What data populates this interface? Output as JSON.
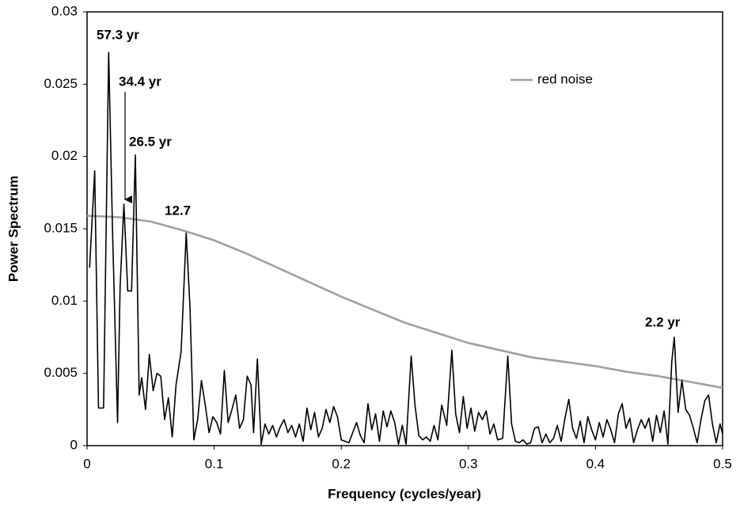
{
  "chart_data": {
    "type": "line",
    "xlabel": "Frequency (cycles/year)",
    "ylabel": "Power Spectrum",
    "xlim": [
      0,
      0.5
    ],
    "xticks": [
      0,
      0.1,
      0.2,
      0.3,
      0.4,
      0.5
    ],
    "ylim": [
      0,
      0.03
    ],
    "yticks": [
      0,
      0.005,
      0.01,
      0.015,
      0.02,
      0.025,
      0.03
    ],
    "grid": false,
    "legend": "top-right",
    "annotations": [
      "57.3 yr",
      "34.4 yr",
      "26.5 yr",
      "12.7",
      "2.2 yr"
    ],
    "series": [
      {
        "color": "#000000",
        "x": [
          0.002,
          0.006,
          0.009,
          0.013,
          0.017,
          0.02,
          0.024,
          0.026,
          0.029,
          0.032,
          0.035,
          0.038,
          0.041,
          0.043,
          0.046,
          0.049,
          0.052,
          0.055,
          0.058,
          0.061,
          0.064,
          0.067,
          0.07,
          0.074,
          0.078,
          0.081,
          0.084,
          0.087,
          0.09,
          0.093,
          0.096,
          0.099,
          0.102,
          0.105,
          0.108,
          0.111,
          0.114,
          0.117,
          0.12,
          0.123,
          0.126,
          0.129,
          0.131,
          0.134,
          0.137,
          0.14,
          0.143,
          0.146,
          0.149,
          0.152,
          0.155,
          0.158,
          0.161,
          0.164,
          0.167,
          0.17,
          0.173,
          0.176,
          0.179,
          0.182,
          0.185,
          0.188,
          0.191,
          0.194,
          0.197,
          0.2,
          0.203,
          0.206,
          0.209,
          0.212,
          0.215,
          0.218,
          0.221,
          0.224,
          0.227,
          0.23,
          0.233,
          0.236,
          0.239,
          0.242,
          0.245,
          0.248,
          0.251,
          0.255,
          0.258,
          0.261,
          0.264,
          0.267,
          0.27,
          0.273,
          0.276,
          0.279,
          0.283,
          0.287,
          0.29,
          0.293,
          0.296,
          0.299,
          0.302,
          0.305,
          0.308,
          0.311,
          0.314,
          0.317,
          0.32,
          0.323,
          0.327,
          0.331,
          0.334,
          0.337,
          0.34,
          0.343,
          0.346,
          0.349,
          0.352,
          0.355,
          0.358,
          0.361,
          0.364,
          0.367,
          0.37,
          0.373,
          0.376,
          0.379,
          0.382,
          0.385,
          0.388,
          0.391,
          0.394,
          0.397,
          0.4,
          0.403,
          0.406,
          0.409,
          0.412,
          0.415,
          0.418,
          0.421,
          0.424,
          0.427,
          0.43,
          0.433,
          0.436,
          0.439,
          0.442,
          0.445,
          0.448,
          0.451,
          0.454,
          0.457,
          0.46,
          0.462,
          0.465,
          0.468,
          0.471,
          0.474,
          0.477,
          0.48,
          0.483,
          0.486,
          0.489,
          0.492,
          0.495,
          0.498,
          0.5
        ],
        "values": [
          0.0123,
          0.019,
          0.0026,
          0.0026,
          0.0272,
          0.015,
          0.0016,
          0.011,
          0.0167,
          0.0107,
          0.0107,
          0.0201,
          0.0035,
          0.0047,
          0.0025,
          0.0063,
          0.0038,
          0.005,
          0.0048,
          0.0018,
          0.0033,
          0.0006,
          0.0042,
          0.0065,
          0.0147,
          0.0095,
          0.0004,
          0.0018,
          0.0045,
          0.0028,
          0.0009,
          0.002,
          0.0016,
          0.0008,
          0.0052,
          0.0016,
          0.0025,
          0.0035,
          0.0012,
          0.0018,
          0.0048,
          0.0042,
          0.0009,
          0.006,
          0.0001,
          0.0015,
          0.0008,
          0.0014,
          0.0006,
          0.0013,
          0.0018,
          0.0009,
          0.0014,
          0.0006,
          0.0015,
          0.0003,
          0.0026,
          0.0011,
          0.0023,
          0.0006,
          0.0012,
          0.0025,
          0.0016,
          0.0027,
          0.002,
          0.0004,
          0.0003,
          0.0002,
          0.0009,
          0.0016,
          0.0007,
          0.0002,
          0.0029,
          0.0011,
          0.0022,
          0.0003,
          0.0024,
          0.0013,
          0.0024,
          0.0016,
          0.0001,
          0.0014,
          0.0001,
          0.0062,
          0.0028,
          0.0007,
          0.0004,
          0.0006,
          0.0003,
          0.0014,
          0.0004,
          0.0028,
          0.0014,
          0.0066,
          0.0022,
          0.0009,
          0.0034,
          0.0012,
          0.0026,
          0.001,
          0.0023,
          0.0018,
          0.0024,
          0.0008,
          0.0015,
          0.0004,
          0.0005,
          0.0062,
          0.0015,
          0.0003,
          0.0002,
          0.0004,
          0.0001,
          0.0002,
          0.0012,
          0.0013,
          0.0002,
          0.0008,
          0.0002,
          0.0005,
          0.0014,
          0.0003,
          0.0019,
          0.0032,
          0.0012,
          0.0005,
          0.0017,
          0.0002,
          0.002,
          0.0011,
          0.0004,
          0.0016,
          0.0006,
          0.0018,
          0.0011,
          0.0002,
          0.0022,
          0.0029,
          0.0012,
          0.0019,
          0.0002,
          0.0011,
          0.0018,
          0.0012,
          0.0019,
          0.0003,
          0.0021,
          0.0009,
          0.0024,
          0.0001,
          0.0058,
          0.0075,
          0.0023,
          0.0045,
          0.0025,
          0.0021,
          0.0012,
          0.0002,
          0.0018,
          0.0031,
          0.0035,
          0.0015,
          0.0002,
          0.0015,
          0.0008
        ]
      },
      {
        "name": "red noise",
        "color": "#a0a0a0",
        "x": [
          0,
          0.025,
          0.05,
          0.075,
          0.1,
          0.125,
          0.15,
          0.175,
          0.2,
          0.225,
          0.25,
          0.275,
          0.3,
          0.325,
          0.35,
          0.375,
          0.4,
          0.425,
          0.45,
          0.475,
          0.5
        ],
        "values": [
          0.0159,
          0.0158,
          0.0155,
          0.0149,
          0.0142,
          0.0133,
          0.0123,
          0.0113,
          0.0103,
          0.0094,
          0.0085,
          0.0078,
          0.0071,
          0.0066,
          0.0061,
          0.0058,
          0.0055,
          0.0051,
          0.0048,
          0.0044,
          0.004
        ]
      }
    ]
  }
}
